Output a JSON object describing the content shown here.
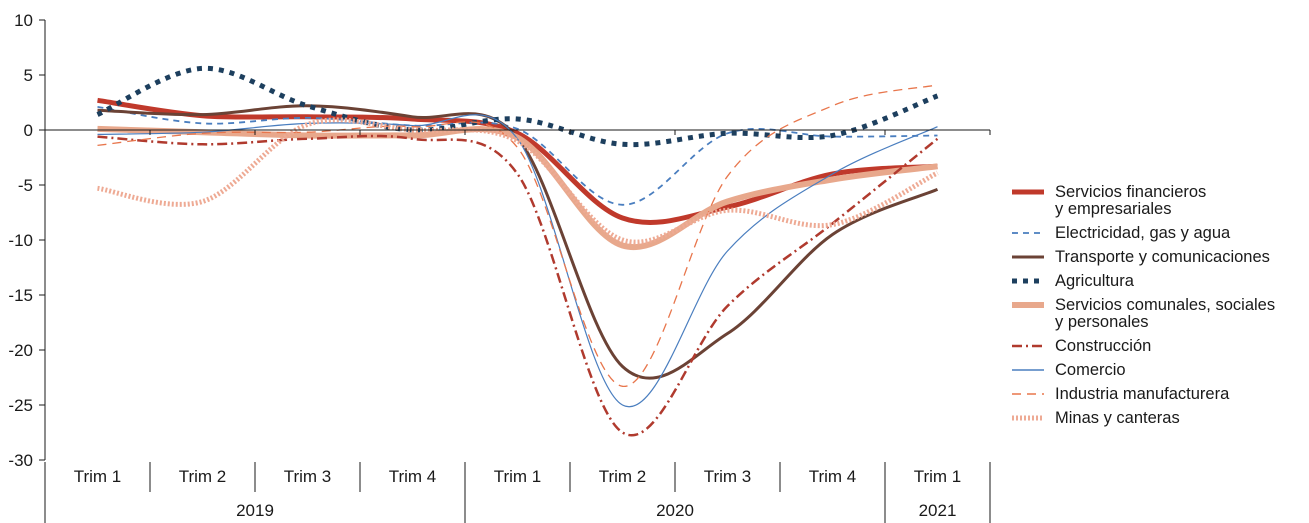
{
  "chart_data": {
    "type": "line",
    "title": "",
    "xlabel": "",
    "ylabel": "",
    "ylim": [
      -30,
      10
    ],
    "yticks": [
      10,
      5,
      0,
      -5,
      -10,
      -15,
      -20,
      -25,
      -30
    ],
    "ytick_labels": [
      "10",
      "5",
      "0",
      "-5",
      "-10",
      "-15",
      "-20",
      "-25",
      "-30"
    ],
    "categories": [
      "Trim 1",
      "Trim 2",
      "Trim 3",
      "Trim 4",
      "Trim 1",
      "Trim 2",
      "Trim 3",
      "Trim 4",
      "Trim 1"
    ],
    "years": [
      {
        "label": "2019",
        "quarters": 4
      },
      {
        "label": "2020",
        "quarters": 4
      },
      {
        "label": "2021",
        "quarters": 1
      }
    ],
    "grid": false,
    "legend_position": "right",
    "series": [
      {
        "name": "Servicios financieros\ny empresariales",
        "color": "#c0392b",
        "width": 5,
        "dash": "",
        "values": [
          2.7,
          1.3,
          1.2,
          1.0,
          -0.3,
          -8.0,
          -7.0,
          -4.0,
          -3.3
        ]
      },
      {
        "name": "Electricidad, gas y agua",
        "color": "#4a7ebf",
        "width": 1.8,
        "dash": "6,5",
        "values": [
          2.1,
          0.6,
          1.1,
          0.4,
          0.1,
          -6.8,
          -0.3,
          -0.6,
          -0.5
        ]
      },
      {
        "name": "Transporte y comunicaciones",
        "color": "#6b4235",
        "width": 3,
        "dash": "",
        "values": [
          1.8,
          1.4,
          2.2,
          1.2,
          -0.7,
          -21.5,
          -18.5,
          -9.5,
          -5.4
        ]
      },
      {
        "name": "Agricultura",
        "color": "#1d3f5e",
        "width": 5,
        "dash": "5,6",
        "values": [
          1.4,
          5.6,
          2.2,
          0.0,
          1.0,
          -1.3,
          -0.3,
          -0.5,
          3.1
        ]
      },
      {
        "name": "Servicios comunales, sociales\ny personales",
        "color": "#e8a88c",
        "width": 6,
        "dash": "",
        "values": [
          0.1,
          -0.2,
          -0.5,
          -0.5,
          -0.7,
          -10.5,
          -6.5,
          -4.5,
          -3.3
        ]
      },
      {
        "name": "Construcción",
        "color": "#b03a2e",
        "width": 2.5,
        "dash": "10,4,2,4",
        "values": [
          -0.6,
          -1.3,
          -0.8,
          -0.8,
          -4.0,
          -27.5,
          -16.0,
          -8.5,
          -0.8
        ]
      },
      {
        "name": "Comercio",
        "color": "#4a7ebf",
        "width": 1.2,
        "dash": "",
        "values": [
          -0.4,
          -0.2,
          0.6,
          0.4,
          -0.8,
          -25.0,
          -11.0,
          -4.0,
          0.3
        ]
      },
      {
        "name": "Industria manufacturera",
        "color": "#e8764c",
        "width": 1.3,
        "dash": "9,6",
        "values": [
          -1.4,
          -0.3,
          -0.2,
          0.3,
          -1.6,
          -23.3,
          -4.2,
          2.2,
          4.1
        ]
      },
      {
        "name": "Minas y canteras",
        "color": "#eeaa94",
        "width": 5,
        "dash": "2,2",
        "values": [
          -5.3,
          -6.5,
          0.5,
          0.0,
          -1.0,
          -10.0,
          -7.3,
          -8.6,
          -3.9
        ]
      }
    ]
  }
}
